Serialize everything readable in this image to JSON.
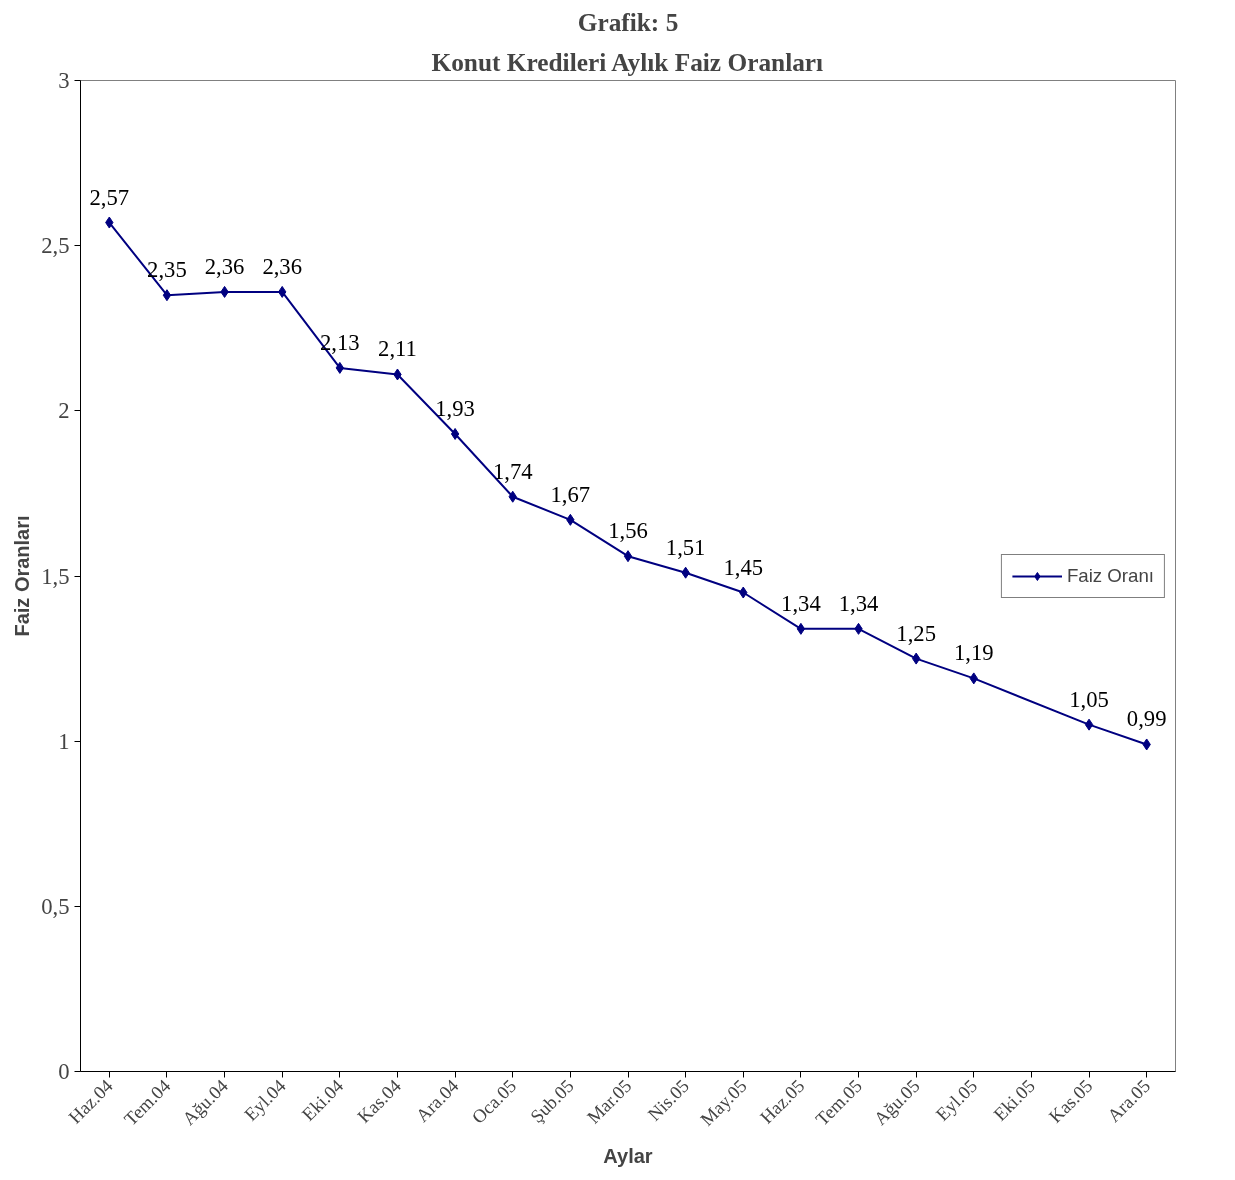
{
  "chart_data": {
    "type": "line",
    "title": "Grafik: 5",
    "subtitle": "Konut Kredileri Aylık Faiz Oranları",
    "xlabel": "Aylar",
    "ylabel": "Faiz Oranları",
    "categories": [
      "Haz.04",
      "Tem.04",
      "Ağu.04",
      "Eyl.04",
      "Eki.04",
      "Kas.04",
      "Ara.04",
      "Oca.05",
      "Şub.05",
      "Mar.05",
      "Nis.05",
      "May.05",
      "Haz.05",
      "Tem.05",
      "Ağu.05",
      "Eyl.05",
      "Eki.05",
      "Kas.05",
      "Ara.05"
    ],
    "series": [
      {
        "name": "Faiz Oranı",
        "color": "#000080",
        "values": [
          2.57,
          2.35,
          2.36,
          2.36,
          2.13,
          2.11,
          1.93,
          1.74,
          1.67,
          1.56,
          1.51,
          1.45,
          1.34,
          1.34,
          1.25,
          1.19,
          null,
          1.05,
          0.99
        ],
        "value_labels": [
          "2,57",
          "2,35",
          "2,36",
          "2,36",
          "2,13",
          "2,11",
          "1,93",
          "1,74",
          "1,67",
          "1,56",
          "1,51",
          "1,45",
          "1,34",
          "1,34",
          "1,25",
          "1,19",
          null,
          "1,05",
          "0,99"
        ]
      }
    ],
    "ylim": [
      0,
      3
    ],
    "yticks": [
      0,
      {
        "value": 0.5,
        "label": "0,5"
      },
      1,
      {
        "value": 1.5,
        "label": "1,5"
      },
      2,
      {
        "value": 2.5,
        "label": "2,5"
      },
      3
    ],
    "grid": false,
    "legend": "right",
    "marker": "diamond",
    "line_style": "solid"
  }
}
